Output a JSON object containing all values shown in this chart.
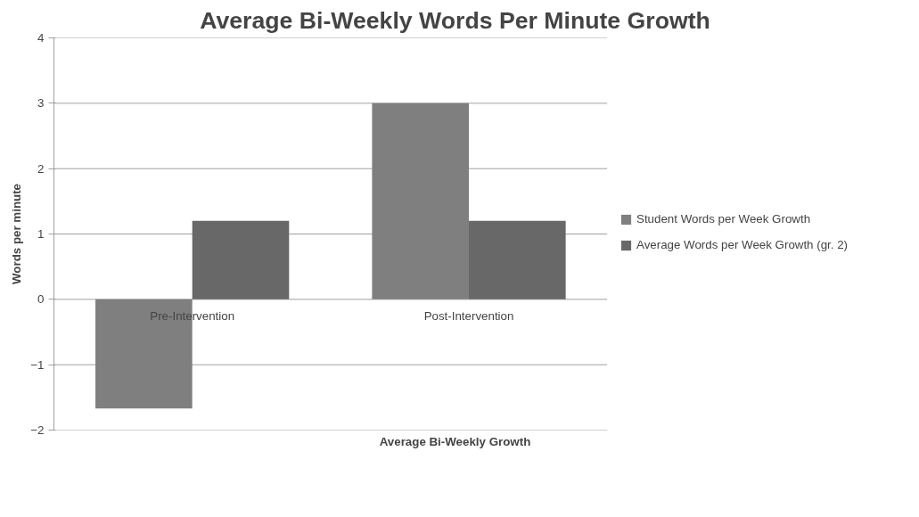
{
  "chart_data": {
    "type": "bar",
    "title": "Average Bi-Weekly Words Per Minute Growth",
    "xlabel": "Average Bi-Weekly Growth",
    "ylabel": "Words per minute",
    "categories": [
      "Pre-Intervention",
      "Post-Intervention"
    ],
    "series": [
      {
        "name": "Student Words per Week Growth",
        "color": "#7f7f7f",
        "values": [
          -1.67,
          3
        ]
      },
      {
        "name": "Average Words per Week Growth (gr. 2)",
        "color": "#686868",
        "values": [
          1.2,
          1.2
        ]
      }
    ],
    "ylim": [
      -2,
      4
    ],
    "yticks": [
      -2,
      -1,
      0,
      1,
      2,
      3,
      4
    ],
    "grid": "y",
    "legend": "right"
  }
}
